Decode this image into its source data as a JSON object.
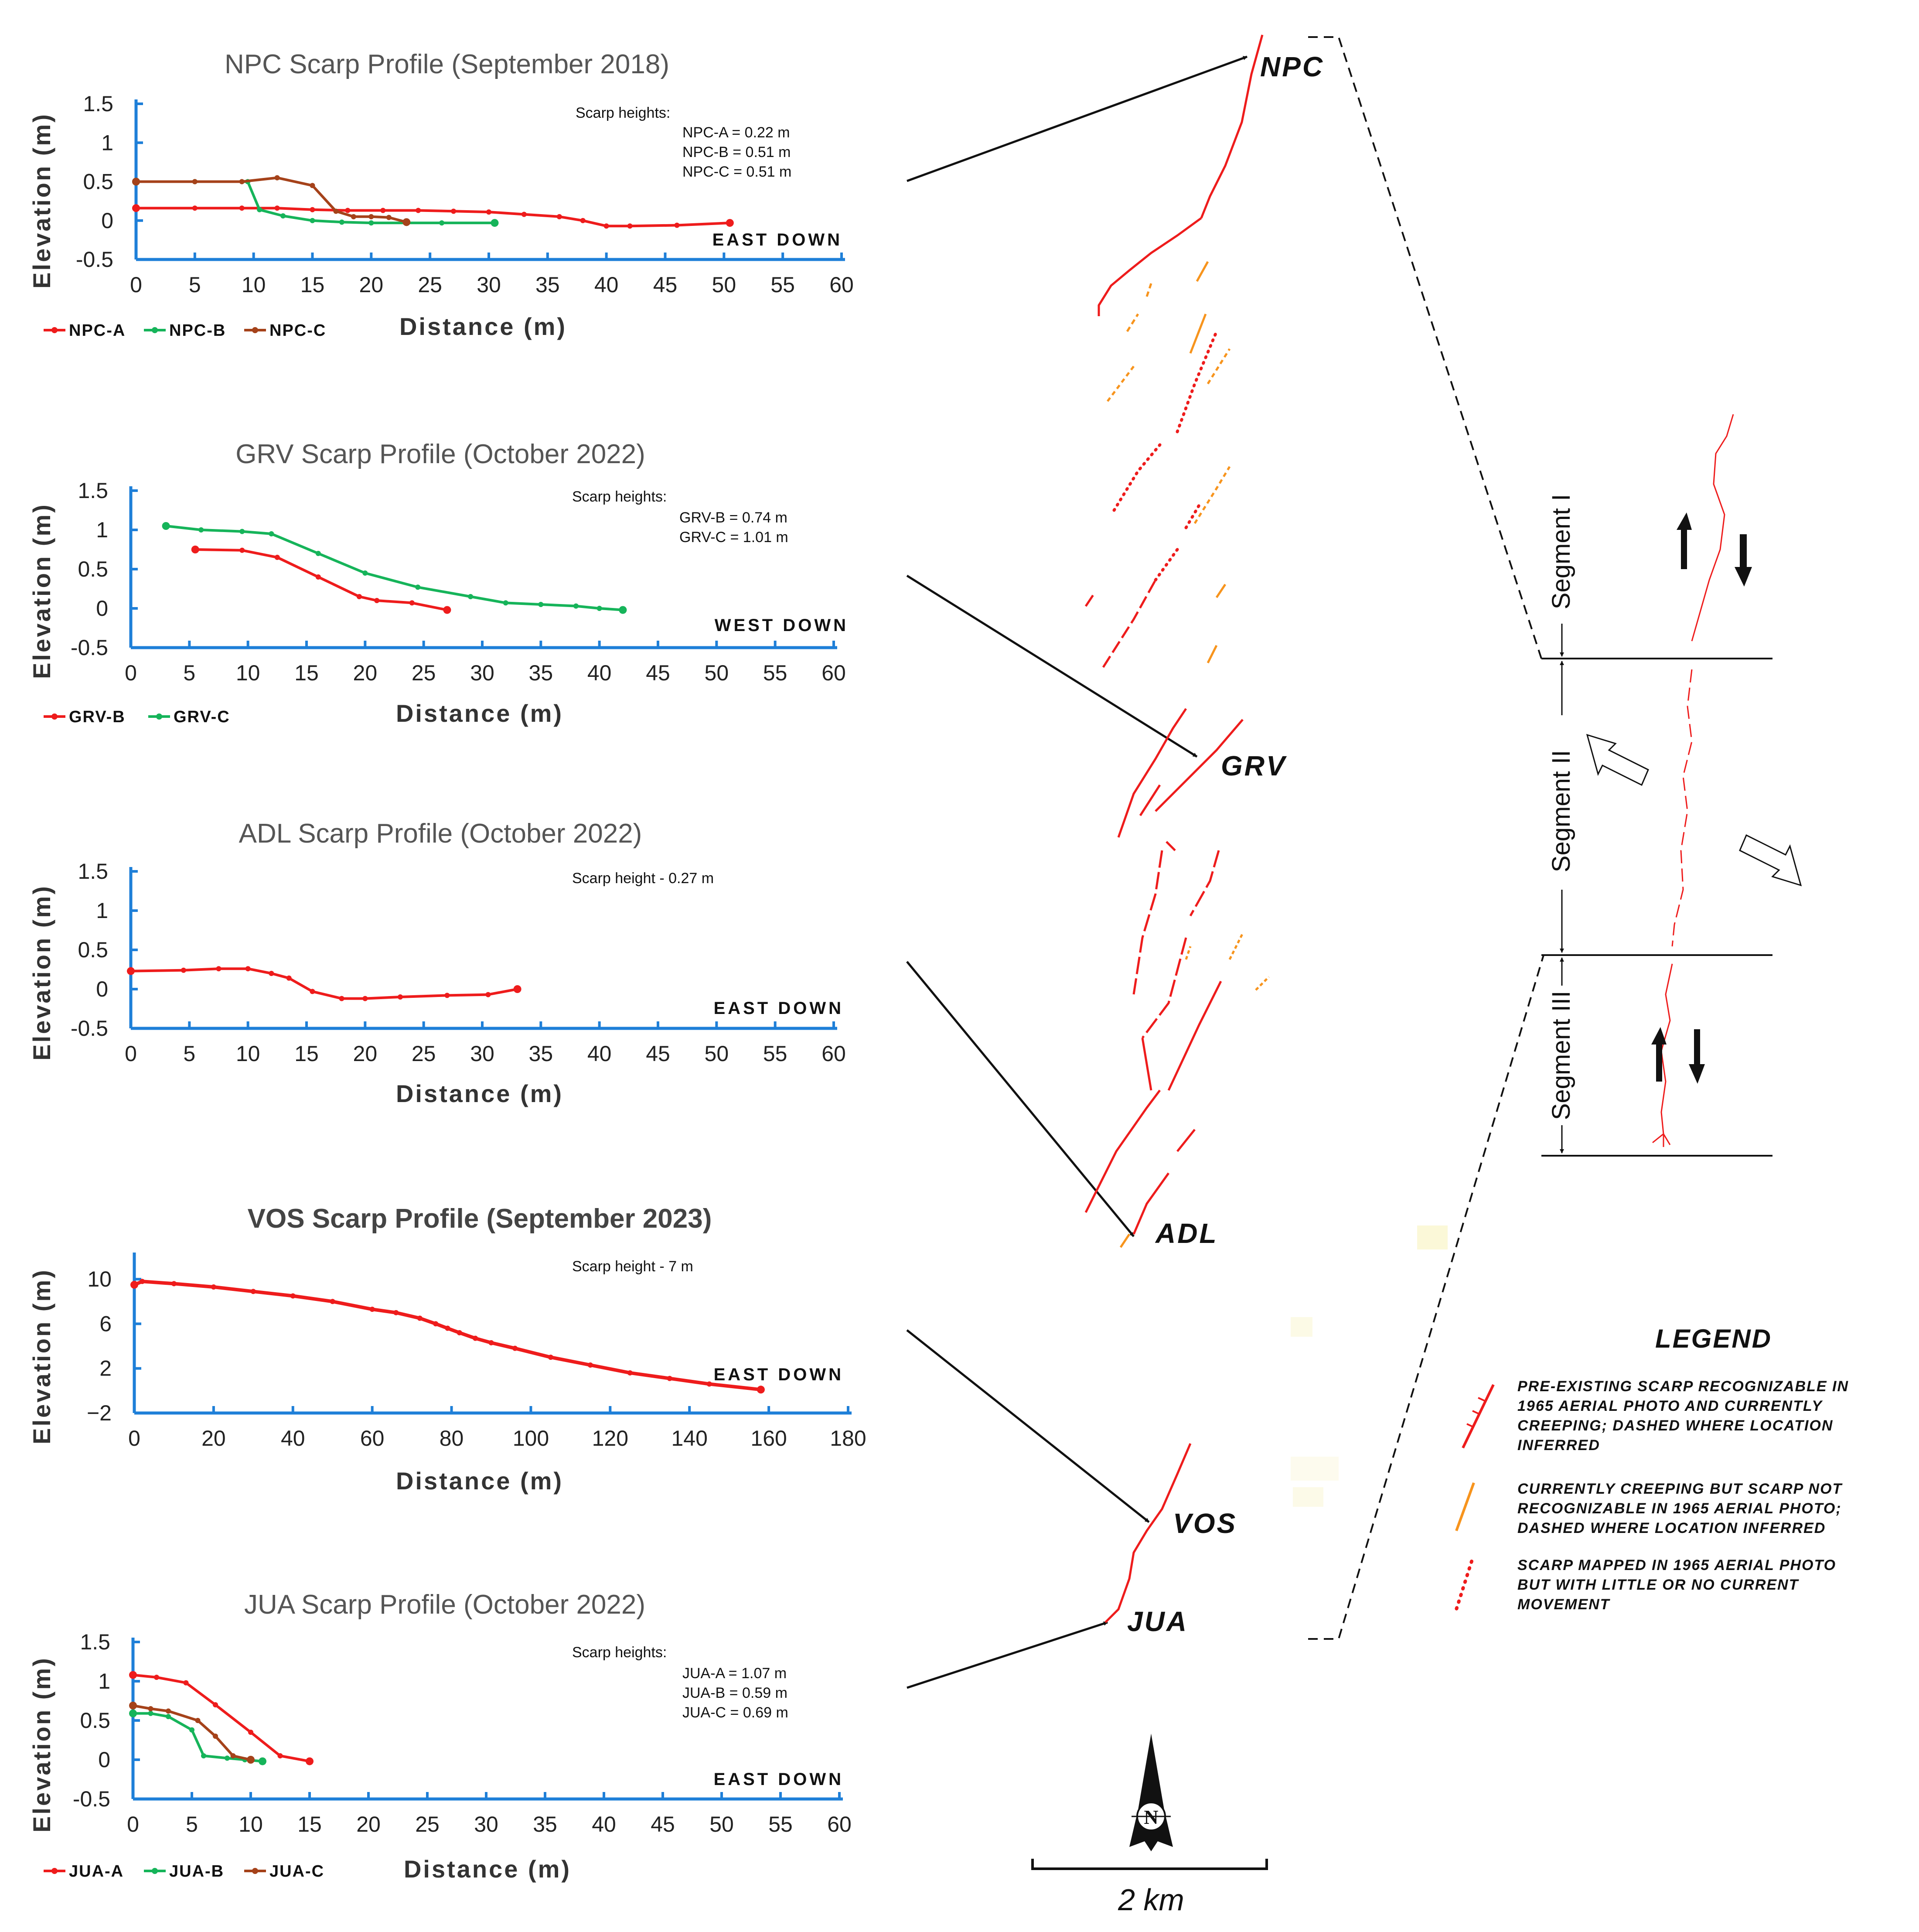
{
  "colors": {
    "red": "#ee1c1c",
    "green": "#16b45a",
    "brown": "#a5421a",
    "orange": "#f7941d",
    "axis": "#1e7fd8",
    "text": "#111111"
  },
  "chart_data": [
    {
      "id": "npc",
      "type": "line",
      "title": "NPC Scarp Profile (September 2018)",
      "xlabel": "Distance (m)",
      "ylabel": "Elevation (m)",
      "xlim": [
        0,
        60
      ],
      "ylim": [
        -0.5,
        1.5
      ],
      "xticks": [
        0,
        5,
        10,
        15,
        20,
        25,
        30,
        35,
        40,
        45,
        50,
        55,
        60
      ],
      "yticks": [
        1.5,
        1,
        0.5,
        0,
        -0.5
      ],
      "xtick_labels": [
        "0",
        "5",
        "10",
        "15",
        "20",
        "25",
        "30",
        "35",
        "40",
        "45",
        "50",
        "55",
        "60"
      ],
      "ytick_labels": [
        "1.5",
        "1",
        "0.5",
        "0",
        "-0.5"
      ],
      "note_title": "Scarp heights:",
      "notes": [
        "NPC-A = 0.22 m",
        "NPC-B = 0.51 m",
        "NPC-C = 0.51 m"
      ],
      "direction": "EAST DOWN",
      "series": [
        {
          "name": "NPC-A",
          "color": "#ee1c1c",
          "x": [
            0,
            5,
            9,
            12,
            15,
            18,
            21,
            24,
            27,
            30,
            33,
            36,
            38,
            40,
            42,
            46,
            50.5
          ],
          "y": [
            0.16,
            0.16,
            0.16,
            0.16,
            0.14,
            0.13,
            0.13,
            0.13,
            0.12,
            0.11,
            0.08,
            0.05,
            0.0,
            -0.07,
            -0.07,
            -0.06,
            -0.03
          ]
        },
        {
          "name": "NPC-B",
          "color": "#16b45a",
          "x": [
            0,
            5,
            9.5,
            10.5,
            12.5,
            15,
            17.5,
            20,
            23,
            26,
            30.5
          ],
          "y": [
            0.5,
            0.5,
            0.5,
            0.14,
            0.06,
            0.0,
            -0.02,
            -0.03,
            -0.03,
            -0.03,
            -0.03
          ]
        },
        {
          "name": "NPC-C",
          "color": "#a5421a",
          "x": [
            0,
            5,
            9,
            12,
            15,
            17,
            18.5,
            20,
            21.5,
            23
          ],
          "y": [
            0.5,
            0.5,
            0.5,
            0.55,
            0.45,
            0.12,
            0.05,
            0.05,
            0.04,
            -0.02
          ]
        }
      ]
    },
    {
      "id": "grv",
      "type": "line",
      "title": "GRV Scarp Profile (October 2022)",
      "xlabel": "Distance (m)",
      "ylabel": "Elevation (m)",
      "xlim": [
        0,
        60
      ],
      "ylim": [
        -0.5,
        1.5
      ],
      "xticks": [
        0,
        5,
        10,
        15,
        20,
        25,
        30,
        35,
        40,
        45,
        50,
        55,
        60
      ],
      "yticks": [
        1.5,
        1,
        0.5,
        0,
        -0.5
      ],
      "xtick_labels": [
        "0",
        "5",
        "10",
        "15",
        "20",
        "25",
        "30",
        "35",
        "40",
        "45",
        "50",
        "55",
        "60"
      ],
      "ytick_labels": [
        "1.5",
        "1",
        "0.5",
        "0",
        "-0.5"
      ],
      "note_title": "Scarp heights:",
      "notes": [
        "GRV-B = 0.74 m",
        "GRV-C = 1.01 m"
      ],
      "direction": "WEST DOWN",
      "series": [
        {
          "name": "GRV-B",
          "color": "#ee1c1c",
          "x": [
            5.5,
            9.5,
            12.5,
            16,
            19.5,
            21,
            24,
            27
          ],
          "y": [
            0.75,
            0.74,
            0.65,
            0.4,
            0.15,
            0.1,
            0.07,
            -0.02
          ]
        },
        {
          "name": "GRV-C",
          "color": "#16b45a",
          "x": [
            3,
            6,
            9.5,
            12,
            16,
            20,
            24.5,
            29,
            32,
            35,
            38,
            40,
            42
          ],
          "y": [
            1.05,
            1.0,
            0.98,
            0.95,
            0.7,
            0.45,
            0.27,
            0.15,
            0.07,
            0.05,
            0.03,
            0.0,
            -0.02
          ]
        }
      ]
    },
    {
      "id": "adl",
      "type": "line",
      "title": "ADL Scarp Profile (October 2022)",
      "xlabel": "Distance (m)",
      "ylabel": "Elevation (m)",
      "xlim": [
        0,
        60
      ],
      "ylim": [
        -0.5,
        1.5
      ],
      "xticks": [
        0,
        5,
        10,
        15,
        20,
        25,
        30,
        35,
        40,
        45,
        50,
        55,
        60
      ],
      "yticks": [
        1.5,
        1,
        0.5,
        0,
        -0.5
      ],
      "xtick_labels": [
        "0",
        "5",
        "10",
        "15",
        "20",
        "25",
        "30",
        "35",
        "40",
        "45",
        "50",
        "55",
        "60"
      ],
      "ytick_labels": [
        "1.5",
        "1",
        "0.5",
        "0",
        "-0.5"
      ],
      "note_title": "",
      "notes": [
        "Scarp height - 0.27 m"
      ],
      "direction": "EAST DOWN",
      "series": [
        {
          "name": "ADL",
          "color": "#ee1c1c",
          "x": [
            0,
            4.5,
            7.5,
            10,
            12,
            13.5,
            15.5,
            18,
            20,
            23,
            27,
            30.5,
            33
          ],
          "y": [
            0.23,
            0.24,
            0.26,
            0.26,
            0.2,
            0.14,
            -0.03,
            -0.12,
            -0.12,
            -0.1,
            -0.08,
            -0.07,
            0.0
          ]
        }
      ]
    },
    {
      "id": "vos",
      "type": "line",
      "title": "VOS Scarp Profile (September 2023)",
      "xlabel": "Distance (m)",
      "ylabel": "Elevation (m)",
      "xlim": [
        0,
        180
      ],
      "ylim": [
        -2,
        12
      ],
      "xticks": [
        0,
        20,
        40,
        60,
        80,
        100,
        120,
        140,
        160,
        180
      ],
      "yticks": [
        10,
        6,
        2,
        -2
      ],
      "xtick_labels": [
        "0",
        "20",
        "40",
        "60",
        "80",
        "100",
        "120",
        "140",
        "160",
        "180"
      ],
      "ytick_labels": [
        "10",
        "6",
        "2",
        "−2"
      ],
      "note_title": "",
      "notes": [
        "Scarp height - 7 m"
      ],
      "direction": "EAST DOWN",
      "series": [
        {
          "name": "VOS",
          "color": "#ee1c1c",
          "x": [
            0,
            2,
            10,
            20,
            30,
            40,
            50,
            60,
            66,
            72,
            76,
            79,
            82,
            86,
            90,
            96,
            105,
            115,
            125,
            135,
            145,
            158
          ],
          "y": [
            9.5,
            9.8,
            9.6,
            9.3,
            8.9,
            8.5,
            8.0,
            7.3,
            7.0,
            6.5,
            6.0,
            5.6,
            5.2,
            4.7,
            4.3,
            3.8,
            3.0,
            2.3,
            1.6,
            1.1,
            0.6,
            0.1
          ]
        }
      ]
    },
    {
      "id": "jua",
      "type": "line",
      "title": "JUA Scarp Profile (October 2022)",
      "xlabel": "Distance (m)",
      "ylabel": "Elevation (m)",
      "xlim": [
        0,
        60
      ],
      "ylim": [
        -0.5,
        1.5
      ],
      "xticks": [
        0,
        5,
        10,
        15,
        20,
        25,
        30,
        35,
        40,
        45,
        50,
        55,
        60
      ],
      "yticks": [
        1.5,
        1,
        0.5,
        0,
        -0.5
      ],
      "xtick_labels": [
        "0",
        "5",
        "10",
        "15",
        "20",
        "25",
        "30",
        "35",
        "40",
        "45",
        "50",
        "55",
        "60"
      ],
      "ytick_labels": [
        "1.5",
        "1",
        "0.5",
        "0",
        "-0.5"
      ],
      "note_title": "Scarp heights:",
      "notes": [
        "JUA-A = 1.07 m",
        "JUA-B = 0.59 m",
        "JUA-C = 0.69 m"
      ],
      "direction": "EAST DOWN",
      "series": [
        {
          "name": "JUA-A",
          "color": "#ee1c1c",
          "x": [
            0,
            2,
            4.5,
            7,
            10,
            12.5,
            15
          ],
          "y": [
            1.08,
            1.05,
            0.98,
            0.7,
            0.35,
            0.05,
            -0.02
          ]
        },
        {
          "name": "JUA-B",
          "color": "#16b45a",
          "x": [
            0,
            1.5,
            3,
            5,
            6,
            8,
            9.5,
            11
          ],
          "y": [
            0.59,
            0.59,
            0.55,
            0.38,
            0.05,
            0.02,
            0.0,
            -0.02
          ]
        },
        {
          "name": "JUA-C",
          "color": "#a5421a",
          "x": [
            0,
            1.5,
            3,
            5.5,
            7,
            8.5,
            10
          ],
          "y": [
            0.69,
            0.65,
            0.62,
            0.5,
            0.3,
            0.05,
            0.0
          ]
        }
      ]
    }
  ],
  "map": {
    "sites": [
      "NPC",
      "GRV",
      "ADL",
      "VOS",
      "JUA"
    ],
    "segments": [
      "Segment I",
      "Segment II",
      "Segment III"
    ],
    "compass_letter": "N",
    "scale_label": "2 km"
  },
  "legend": {
    "title": "LEGEND",
    "items": [
      {
        "lines": [
          "PRE-EXISTING SCARP RECOGNIZABLE IN",
          "1965 AERIAL PHOTO AND CURRENTLY",
          "CREEPING; DASHED WHERE LOCATION",
          "INFERRED"
        ]
      },
      {
        "lines": [
          "CURRENTLY CREEPING BUT  SCARP NOT",
          "RECOGNIZABLE IN 1965 AERIAL PHOTO;",
          "DASHED WHERE LOCATION INFERRED"
        ]
      },
      {
        "lines": [
          "SCARP MAPPED IN 1965 AERIAL PHOTO",
          "BUT WITH LITTLE OR NO CURRENT",
          "MOVEMENT"
        ]
      }
    ]
  }
}
